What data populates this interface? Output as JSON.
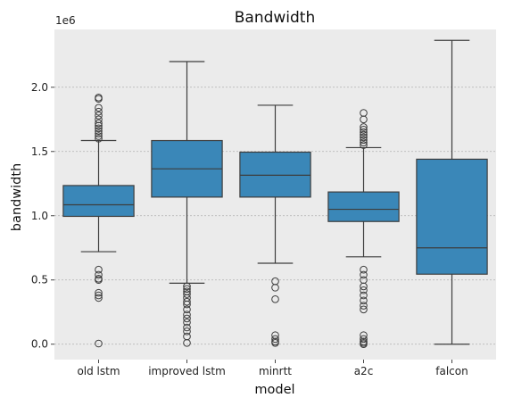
{
  "chart_data": {
    "type": "box",
    "title": "Bandwidth",
    "xlabel": "model",
    "ylabel": "bandwidth",
    "y_offset_label": "1e6",
    "ylim": [
      -0.12,
      2.45
    ],
    "yticks": [
      0.0,
      0.5,
      1.0,
      1.5,
      2.0
    ],
    "ytick_labels": [
      "0.0",
      "0.5",
      "1.0",
      "1.5",
      "2.0"
    ],
    "grid": true,
    "colors": {
      "box": "#3a87b8",
      "line": "#3d3d3d",
      "plot_bg": "#ebebeb",
      "grid": "#b0b0b0"
    },
    "categories": [
      "old lstm",
      "improved lstm",
      "minrtt",
      "a2c",
      "falcon"
    ],
    "boxes": [
      {
        "whislo": 0.72,
        "q1": 0.995,
        "med": 1.085,
        "q3": 1.235,
        "whishi": 1.585,
        "fliers": [
          1.6,
          1.62,
          1.64,
          1.66,
          1.68,
          1.7,
          1.72,
          1.75,
          1.78,
          1.81,
          1.84,
          1.91,
          1.92,
          0.58,
          0.54,
          0.51,
          0.5,
          0.4,
          0.38,
          0.36,
          0.005
        ]
      },
      {
        "whislo": 0.475,
        "q1": 1.145,
        "med": 1.365,
        "q3": 1.585,
        "whishi": 2.2,
        "fliers": [
          0.45,
          0.43,
          0.41,
          0.39,
          0.36,
          0.33,
          0.31,
          0.27,
          0.23,
          0.2,
          0.17,
          0.13,
          0.1,
          0.06,
          0.01
        ]
      },
      {
        "whislo": 0.63,
        "q1": 1.145,
        "med": 1.315,
        "q3": 1.495,
        "whishi": 1.86,
        "fliers": [
          0.49,
          0.44,
          0.35,
          0.07,
          0.04,
          0.02,
          0.01
        ]
      },
      {
        "whislo": 0.68,
        "q1": 0.955,
        "med": 1.05,
        "q3": 1.185,
        "whishi": 1.53,
        "fliers": [
          1.55,
          1.57,
          1.59,
          1.61,
          1.63,
          1.65,
          1.67,
          1.69,
          1.75,
          1.8,
          0.58,
          0.54,
          0.5,
          0.45,
          0.42,
          0.38,
          0.34,
          0.3,
          0.27,
          0.07,
          0.04,
          0.02,
          0.01,
          0.0
        ]
      },
      {
        "whislo": 0.0,
        "q1": 0.545,
        "med": 0.75,
        "q3": 1.44,
        "whishi": 2.365,
        "fliers": []
      }
    ]
  }
}
